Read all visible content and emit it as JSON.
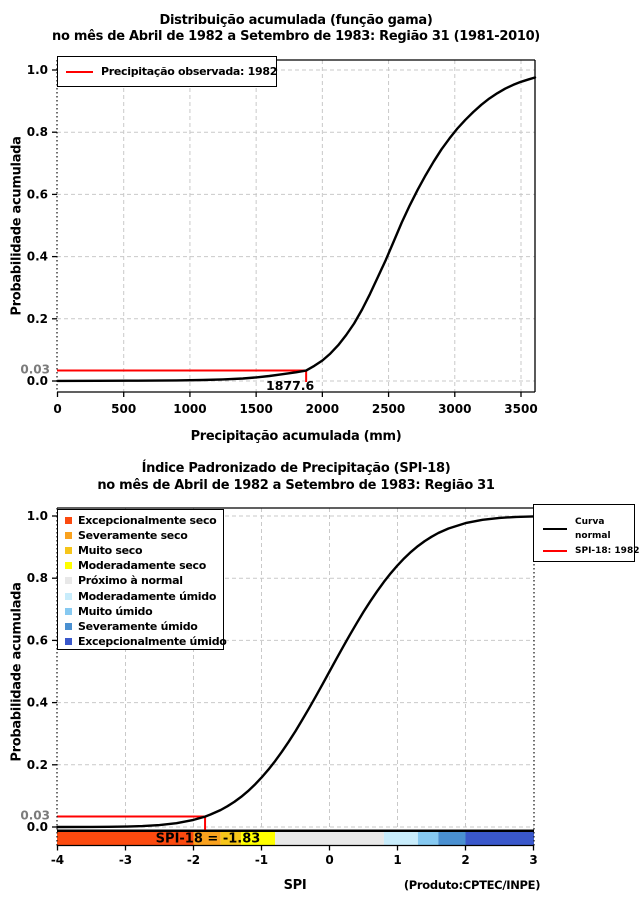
{
  "colors": {
    "observed_line": "#ff0000",
    "curve": "#000000",
    "grid": "#c9c9c9",
    "muted_tick_label": "#7b7b7b",
    "background": "#ffffff"
  },
  "chart_data": [
    {
      "type": "line",
      "title": "Distribuição acumulada (função gama)",
      "subtitle": "no mês de Abril de 1982 a Setembro de 1983: Região 31 (1981-2010)",
      "xlabel": "Precipitação acumulada (mm)",
      "ylabel": "Probabilidade acumulada",
      "xlim": [
        0,
        3606
      ],
      "ylim": [
        0,
        1.035
      ],
      "x_ticks": [
        0,
        500,
        1000,
        1500,
        2000,
        2500,
        3000,
        3500
      ],
      "y_ticks": [
        0,
        0.2,
        0.4,
        0.6,
        0.8,
        1
      ],
      "y_tick_labels": [
        "0.0",
        "0.2",
        "0.4",
        "0.6",
        "0.8",
        "1.0"
      ],
      "special_y_tick": {
        "value": 0.03,
        "label": "0.03"
      },
      "grid": true,
      "legend": {
        "position": "top-left",
        "items": [
          {
            "label": "Precipitação observada: 1982",
            "color": "#ff0000",
            "type": "line"
          }
        ]
      },
      "guide": {
        "color": "#ff0000",
        "prob": 0.0336,
        "x": 1877.6,
        "x_label": "1877.6"
      },
      "series": [
        {
          "name": "Distribuição gama acumulada",
          "color": "#000000",
          "points": [
            [
              0,
              0.0004
            ],
            [
              300,
              0.0005
            ],
            [
              600,
              0.0009
            ],
            [
              900,
              0.002
            ],
            [
              1100,
              0.0032
            ],
            [
              1250,
              0.005
            ],
            [
              1400,
              0.008
            ],
            [
              1500,
              0.0115
            ],
            [
              1600,
              0.016
            ],
            [
              1700,
              0.022
            ],
            [
              1800,
              0.028
            ],
            [
              1877.6,
              0.0336
            ],
            [
              1940,
              0.049
            ],
            [
              2000,
              0.066
            ],
            [
              2060,
              0.088
            ],
            [
              2120,
              0.115
            ],
            [
              2180,
              0.148
            ],
            [
              2240,
              0.185
            ],
            [
              2300,
              0.23
            ],
            [
              2360,
              0.28
            ],
            [
              2420,
              0.335
            ],
            [
              2480,
              0.39
            ],
            [
              2540,
              0.45
            ],
            [
              2600,
              0.51
            ],
            [
              2660,
              0.565
            ],
            [
              2720,
              0.615
            ],
            [
              2780,
              0.662
            ],
            [
              2840,
              0.705
            ],
            [
              2900,
              0.745
            ],
            [
              2960,
              0.78
            ],
            [
              3020,
              0.812
            ],
            [
              3080,
              0.84
            ],
            [
              3140,
              0.865
            ],
            [
              3200,
              0.888
            ],
            [
              3260,
              0.908
            ],
            [
              3320,
              0.925
            ],
            [
              3380,
              0.94
            ],
            [
              3440,
              0.952
            ],
            [
              3500,
              0.962
            ],
            [
              3560,
              0.97
            ],
            [
              3606,
              0.976
            ]
          ]
        }
      ]
    },
    {
      "type": "line",
      "title": "Índice Padronizado de Precipitação (SPI-18)",
      "subtitle": "no mês de Abril de 1982 a Setembro de 1983: Região 31",
      "xlabel": "SPI",
      "ylabel": "Probabilidade acumulada",
      "footnote": "(Produto:CPTEC/INPE)",
      "xlim": [
        -4,
        3
      ],
      "ylim": [
        0,
        1.035
      ],
      "x_ticks": [
        -4,
        -3,
        -2,
        -1,
        0,
        1,
        2,
        3
      ],
      "y_ticks": [
        0,
        0.2,
        0.4,
        0.6,
        0.8,
        1
      ],
      "y_tick_labels": [
        "0.0",
        "0.2",
        "0.4",
        "0.6",
        "0.8",
        "1.0"
      ],
      "special_y_tick": {
        "value": 0.03,
        "label": "0.03"
      },
      "grid": true,
      "bar_annotation": "SPI-18 = -1.83",
      "guide": {
        "color": "#ff0000",
        "prob": 0.0336,
        "x": -1.83
      },
      "categories": [
        {
          "label": "Excepcionalmente seco",
          "color": "#fb4a0f",
          "from": -4,
          "to": -2
        },
        {
          "label": "Severamente seco",
          "color": "#faa21e",
          "from": -2,
          "to": -1.6
        },
        {
          "label": "Muito seco",
          "color": "#f6c51a",
          "from": -1.6,
          "to": -1.3
        },
        {
          "label": "Moderadamente seco",
          "color": "#ffff00",
          "from": -1.3,
          "to": -0.8
        },
        {
          "label": "Próximo à normal",
          "color": "#e8e8e8",
          "from": -0.8,
          "to": 0.8
        },
        {
          "label": "Moderadamente úmido",
          "color": "#c8ecfb",
          "from": 0.8,
          "to": 1.3
        },
        {
          "label": "Muito úmido",
          "color": "#86c9f1",
          "from": 1.3,
          "to": 1.6
        },
        {
          "label": "Severamente úmido",
          "color": "#4a90d1",
          "from": 1.6,
          "to": 2
        },
        {
          "label": "Excepcionalmente úmido",
          "color": "#3a58cb",
          "from": 2,
          "to": 3
        }
      ],
      "right_legend": {
        "items": [
          {
            "label": "Curva normal",
            "label_lines": [
              "Curva",
              "normal"
            ],
            "color": "#000000",
            "type": "line"
          },
          {
            "label": "SPI-18: 1982",
            "color": "#ff0000",
            "type": "line"
          }
        ]
      },
      "series": [
        {
          "name": "Curva normal",
          "color": "#000000",
          "points": [
            [
              -4,
              3e-05
            ],
            [
              -3.5,
              0.00023
            ],
            [
              -3.25,
              0.00058
            ],
            [
              -3,
              0.00135
            ],
            [
              -2.75,
              0.003
            ],
            [
              -2.5,
              0.0062
            ],
            [
              -2.25,
              0.0122
            ],
            [
              -2,
              0.0228
            ],
            [
              -1.83,
              0.0336
            ],
            [
              -1.75,
              0.0401
            ],
            [
              -1.6,
              0.0548
            ],
            [
              -1.5,
              0.0668
            ],
            [
              -1.4,
              0.0808
            ],
            [
              -1.3,
              0.0968
            ],
            [
              -1.2,
              0.1151
            ],
            [
              -1.1,
              0.1357
            ],
            [
              -1,
              0.1587
            ],
            [
              -0.9,
              0.1841
            ],
            [
              -0.8,
              0.2119
            ],
            [
              -0.7,
              0.242
            ],
            [
              -0.6,
              0.2743
            ],
            [
              -0.5,
              0.3085
            ],
            [
              -0.4,
              0.3446
            ],
            [
              -0.3,
              0.3821
            ],
            [
              -0.2,
              0.4207
            ],
            [
              -0.1,
              0.4602
            ],
            [
              0,
              0.5
            ],
            [
              0.1,
              0.5398
            ],
            [
              0.2,
              0.5793
            ],
            [
              0.3,
              0.6179
            ],
            [
              0.4,
              0.6554
            ],
            [
              0.5,
              0.6915
            ],
            [
              0.6,
              0.7257
            ],
            [
              0.7,
              0.758
            ],
            [
              0.8,
              0.7881
            ],
            [
              0.9,
              0.8159
            ],
            [
              1,
              0.8413
            ],
            [
              1.1,
              0.8643
            ],
            [
              1.2,
              0.8849
            ],
            [
              1.3,
              0.9032
            ],
            [
              1.4,
              0.9192
            ],
            [
              1.5,
              0.9332
            ],
            [
              1.6,
              0.9452
            ],
            [
              1.75,
              0.9599
            ],
            [
              2,
              0.9772
            ],
            [
              2.25,
              0.9878
            ],
            [
              2.5,
              0.9938
            ],
            [
              2.75,
              0.997
            ],
            [
              3,
              0.9987
            ]
          ]
        }
      ]
    }
  ]
}
